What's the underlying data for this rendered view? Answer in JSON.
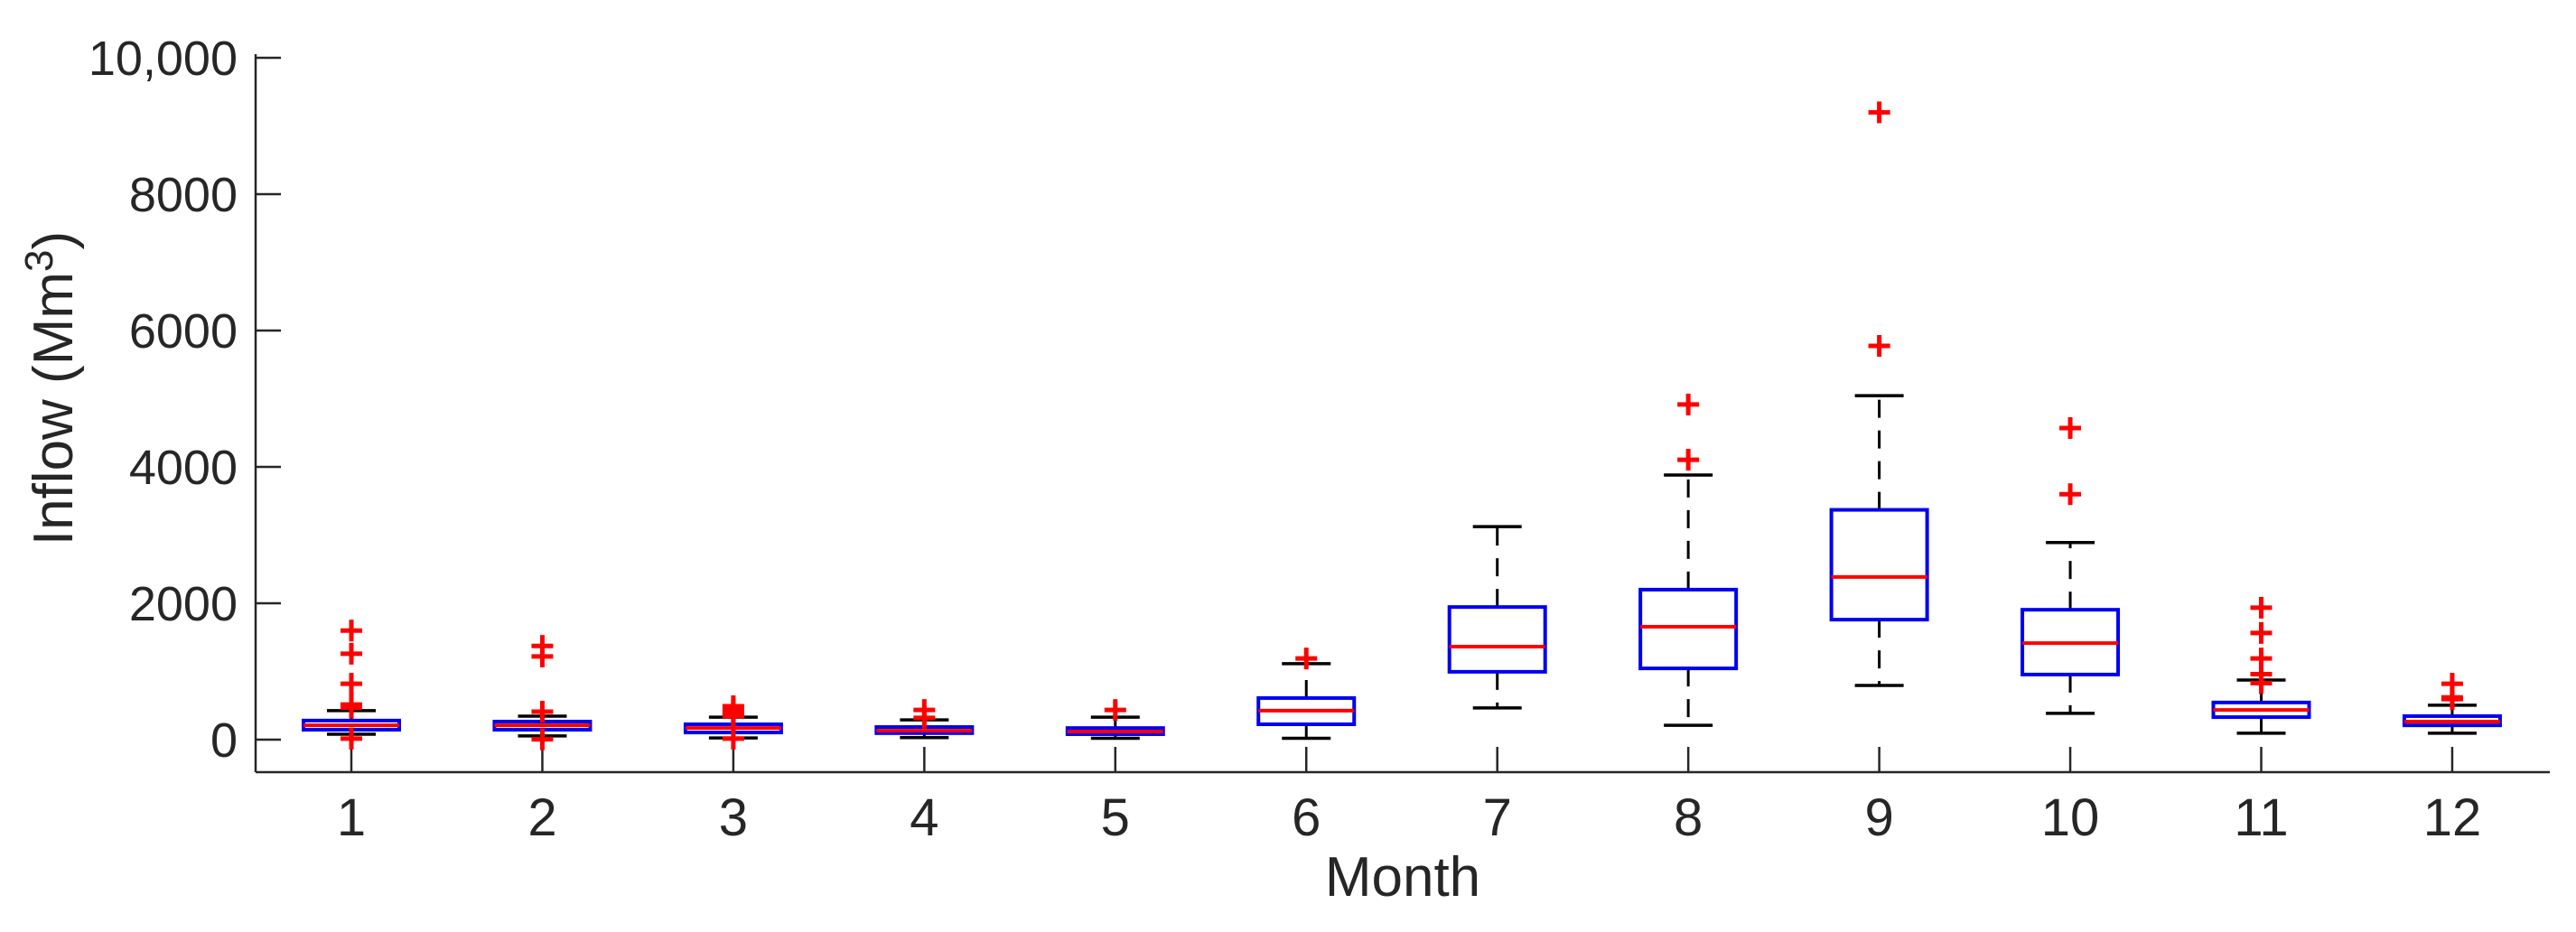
{
  "figure": {
    "background": "#ffffff"
  },
  "chart_data": {
    "type": "boxplot",
    "title": "",
    "xlabel": "Month",
    "ylabel": "Inflow (Mm3)",
    "ylabel_prefix": "Inflow (Mm",
    "ylabel_sup": "3",
    "ylabel_suffix": ")",
    "categories": [
      "1",
      "2",
      "3",
      "4",
      "5",
      "6",
      "7",
      "8",
      "9",
      "10",
      "11",
      "12"
    ],
    "y_ticks": {
      "values": [
        0,
        2000,
        4000,
        6000,
        8000,
        10000
      ],
      "labels": [
        "0",
        "2000",
        "4000",
        "6000",
        "8000",
        "10,000"
      ]
    },
    "ylim": [
      -480,
      10060
    ],
    "grid": false,
    "legend": false,
    "units": "Mm3",
    "boxes": [
      {
        "month": "1",
        "q1": 145,
        "median": 210,
        "q3": 280,
        "whisker_low": 80,
        "whisker_high": 425,
        "outliers": [
          1600,
          1260,
          820,
          515,
          470,
          15
        ]
      },
      {
        "month": "2",
        "q1": 145,
        "median": 210,
        "q3": 265,
        "whisker_low": 55,
        "whisker_high": 345,
        "outliers": [
          1375,
          1220,
          410,
          5
        ]
      },
      {
        "month": "3",
        "q1": 105,
        "median": 170,
        "q3": 225,
        "whisker_low": 25,
        "whisker_high": 330,
        "outliers": [
          490,
          430,
          375,
          345,
          15
        ]
      },
      {
        "month": "4",
        "q1": 95,
        "median": 130,
        "q3": 185,
        "whisker_low": 30,
        "whisker_high": 290,
        "outliers": [
          435,
          320
        ]
      },
      {
        "month": "5",
        "q1": 80,
        "median": 120,
        "q3": 170,
        "whisker_low": 20,
        "whisker_high": 330,
        "outliers": [
          435
        ]
      },
      {
        "month": "6",
        "q1": 225,
        "median": 425,
        "q3": 610,
        "whisker_low": 20,
        "whisker_high": 1115,
        "outliers": [
          1190
        ]
      },
      {
        "month": "7",
        "q1": 995,
        "median": 1365,
        "q3": 1945,
        "whisker_low": 465,
        "whisker_high": 3125,
        "outliers": []
      },
      {
        "month": "8",
        "q1": 1045,
        "median": 1655,
        "q3": 2200,
        "whisker_low": 210,
        "whisker_high": 3880,
        "outliers": [
          4915,
          4105
        ]
      },
      {
        "month": "9",
        "q1": 1760,
        "median": 2385,
        "q3": 3370,
        "whisker_low": 795,
        "whisker_high": 5045,
        "outliers": [
          9200,
          5775
        ]
      },
      {
        "month": "10",
        "q1": 955,
        "median": 1415,
        "q3": 1905,
        "whisker_low": 385,
        "whisker_high": 2890,
        "outliers": [
          4570,
          3600
        ]
      },
      {
        "month": "11",
        "q1": 330,
        "median": 435,
        "q3": 545,
        "whisker_low": 95,
        "whisker_high": 875,
        "outliers": [
          1935,
          1565,
          1190,
          960,
          830
        ]
      },
      {
        "month": "12",
        "q1": 210,
        "median": 265,
        "q3": 345,
        "whisker_low": 95,
        "whisker_high": 505,
        "outliers": [
          820,
          620,
          595
        ]
      }
    ],
    "colors": {
      "box": "#0000f0",
      "median": "#ff0000",
      "whisker": "#000000",
      "cap": "#000000",
      "outlier": "#ff0000",
      "axis": "#262626",
      "text": "#262626"
    }
  }
}
